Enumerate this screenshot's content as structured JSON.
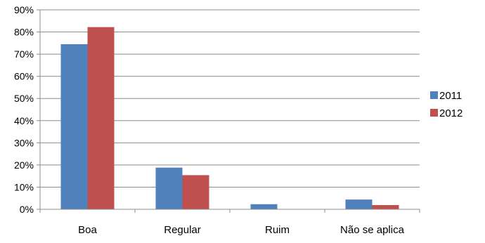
{
  "chart_data": {
    "type": "bar",
    "categories": [
      "Boa",
      "Regular",
      "Ruim",
      "Não se aplica"
    ],
    "series": [
      {
        "name": "2011",
        "color": "#4f81bd",
        "values": [
          74.5,
          18.8,
          2.3,
          4.4
        ]
      },
      {
        "name": "2012",
        "color": "#c0504d",
        "values": [
          82.2,
          15.4,
          0,
          1.9
        ]
      }
    ],
    "ylim": [
      0,
      90
    ],
    "yticks": [
      "0%",
      "10%",
      "20%",
      "30%",
      "40%",
      "50%",
      "60%",
      "70%",
      "80%",
      "90%"
    ],
    "grid": true,
    "legend_position": "right"
  }
}
